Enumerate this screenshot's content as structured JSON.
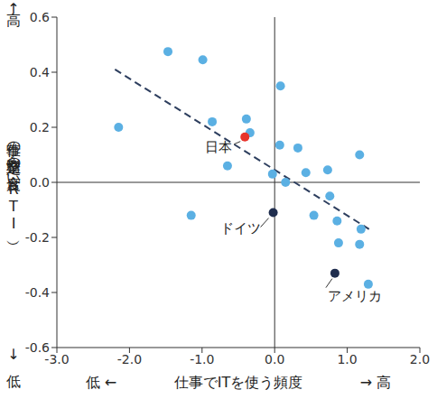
{
  "chart_data": {
    "type": "scatter",
    "x_label": {
      "left": "低 ←",
      "main": "仕事でITを使う頻度",
      "right": "→ 高"
    },
    "y_label": {
      "top": "高↑",
      "main": "仕事の定型業務の度合い（RTI）",
      "bottom": "↓低"
    },
    "xlim": [
      -3,
      2
    ],
    "xticks": [
      {
        "value": -3,
        "label": "-3.0"
      },
      {
        "value": -2,
        "label": "-2.0"
      },
      {
        "value": -1,
        "label": "-1.0"
      },
      {
        "value": 0,
        "label": "0.0"
      },
      {
        "value": 1,
        "label": "1.0"
      },
      {
        "value": 2,
        "label": "2.0"
      }
    ],
    "ylim": [
      -0.6,
      0.6
    ],
    "yticks": [
      -0.6,
      -0.4,
      -0.2,
      {
        "value": 0,
        "label": "0.0"
      },
      0.2,
      0.4,
      0.6
    ],
    "points": {
      "color": "#5bb0e3",
      "x": [
        -2.15,
        -1.47,
        -0.99,
        -0.86,
        -0.39,
        -0.34,
        -0.65,
        -1.15,
        -0.03,
        0.08,
        0.07,
        0.15,
        0.32,
        0.43,
        0.73,
        1.17,
        0.76,
        0.54,
        0.86,
        1.19,
        0.88,
        1.17,
        1.29
      ],
      "y": [
        0.2,
        0.475,
        0.445,
        0.22,
        0.23,
        0.18,
        0.06,
        -0.12,
        0.03,
        0.35,
        0.135,
        0.0,
        0.125,
        0.035,
        0.045,
        0.1,
        -0.05,
        -0.12,
        -0.14,
        -0.17,
        -0.22,
        -0.225,
        -0.37
      ]
    },
    "annotations": [
      {
        "text": "日本",
        "x": -0.41,
        "y": 0.165,
        "color": "#e8332a"
      },
      {
        "text": "ドイツ",
        "x": -0.02,
        "y": -0.11,
        "color": "#1f2d4e"
      },
      {
        "text": "アメリカ",
        "x": 0.83,
        "y": -0.33,
        "color": "#1f2d4e"
      }
    ],
    "trend_line": {
      "x": [
        -2.2,
        1.3
      ],
      "y": [
        0.41,
        -0.17
      ],
      "color": "#2d3e5e",
      "line_style": "dashed"
    }
  }
}
